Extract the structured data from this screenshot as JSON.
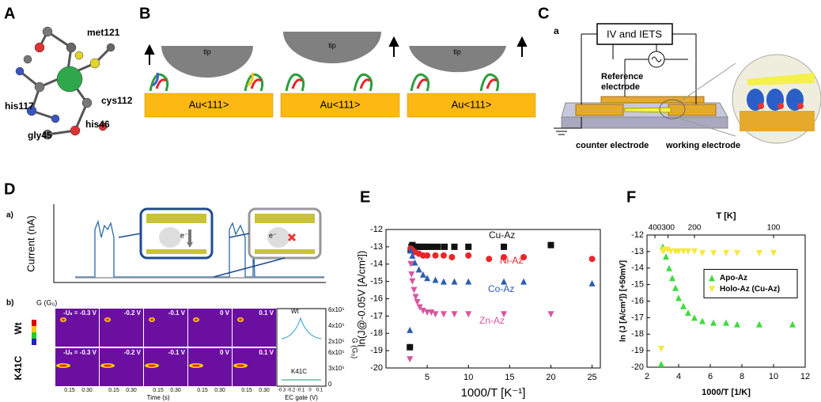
{
  "panels": {
    "A": {
      "letter": "A",
      "labels": [
        "met121",
        "cys112",
        "his117",
        "his46",
        "gly45"
      ]
    },
    "B": {
      "letter": "B",
      "tip": [
        "tip",
        "tip",
        "tip"
      ],
      "substrate": [
        "Au<111>",
        "Au<111>",
        "Au<111>"
      ]
    },
    "C": {
      "letter": "C",
      "sub": "a",
      "box": "IV and IETS",
      "reference": [
        "Reference",
        "electrode"
      ],
      "counter": "counter electrode",
      "working": "working electrode"
    },
    "D": {
      "letter": "D",
      "a": "a)",
      "current": "Current (nA)",
      "b": "b)",
      "g_label": "G (G₀)",
      "rows": [
        "Wt",
        "K41C"
      ],
      "voltages": [
        "-Uₛ = -0.3 V",
        "-0.2 V",
        "-0.1 V",
        "0 V",
        "0.1 V"
      ],
      "time": "Time (s)",
      "time_ticks": [
        "0.15",
        "0.30"
      ],
      "gate": "EC gate (V)",
      "gate_ticks": [
        "-0.3",
        "-0.2",
        "-0.1",
        "0",
        "0.1"
      ],
      "right_axis": "G (G₀)",
      "right_ticks_top": [
        "6x10⁵",
        "4x10⁵",
        "2x10⁵"
      ],
      "right_ticks_bottom": [
        "6x10⁵",
        "3x10⁵",
        "0"
      ],
      "legend": [
        "Wt",
        "K41C"
      ]
    },
    "E": {
      "letter": "E"
    },
    "F": {
      "letter": "F"
    }
  },
  "chart_data": [
    {
      "type": "scatter",
      "xlabel": "1000/T [K⁻¹]",
      "ylabel": "ln(J@-0.05V [A/cm²])",
      "xlim": [
        0,
        26
      ],
      "ylim": [
        -20,
        -12
      ],
      "xticks": [
        5,
        10,
        15,
        20,
        25
      ],
      "yticks": [
        -20,
        -19,
        -18,
        -17,
        -16,
        -15,
        -14,
        -13,
        -12
      ],
      "series": [
        {
          "name": "Cu-Az",
          "color": "#111111",
          "marker": "square",
          "x": [
            2.9,
            3,
            3.1,
            3.2,
            3.4,
            3.6,
            3.8,
            4.2,
            4.6,
            5,
            5.6,
            6.3,
            7.1,
            8.3,
            10,
            14.3,
            20
          ],
          "values": [
            -18.8,
            -13.2,
            -13,
            -12.9,
            -13,
            -13,
            -13,
            -13,
            -13,
            -13,
            -13,
            -13,
            -13,
            -13,
            -13,
            -13,
            -12.9
          ]
        },
        {
          "name": "Ni-Az",
          "color": "#e8262a",
          "marker": "circle",
          "x": [
            3,
            3.2,
            3.5,
            4,
            4.5,
            5,
            6,
            7,
            8,
            10,
            12.5,
            14.3,
            16.7,
            25
          ],
          "values": [
            -13.1,
            -13.2,
            -13.3,
            -13.4,
            -13.5,
            -13.5,
            -13.5,
            -13.5,
            -13.6,
            -13.5,
            -13.7,
            -13.6,
            -13.6,
            -13.7
          ]
        },
        {
          "name": "Co-Az",
          "color": "#2a5db0",
          "marker": "triangle",
          "x": [
            2.9,
            3,
            3.2,
            3.5,
            4,
            4.5,
            5,
            6,
            7,
            8.3,
            10,
            14.3,
            16.7,
            25
          ],
          "values": [
            -17.8,
            -13.2,
            -13.5,
            -13.9,
            -14.3,
            -14.6,
            -14.8,
            -14.9,
            -15,
            -15,
            -15,
            -15,
            -15,
            -15.1
          ]
        },
        {
          "name": "Zn-Az",
          "color": "#d9559f",
          "marker": "triangle-down",
          "x": [
            2.9,
            3,
            3.1,
            3.2,
            3.4,
            3.6,
            3.8,
            4.1,
            4.5,
            5,
            5.5,
            6,
            7,
            8.3,
            10,
            14.3,
            20
          ],
          "values": [
            -19.5,
            -14,
            -14.6,
            -15,
            -15.5,
            -15.9,
            -16.2,
            -16.5,
            -16.7,
            -16.8,
            -16.8,
            -16.9,
            -16.9,
            -16.9,
            -16.9,
            -16.9,
            -16.9
          ]
        }
      ]
    },
    {
      "type": "scatter",
      "xlabel": "1000/T [1/K]",
      "ylabel": "ln (J [A/cm²]) [+50mV]",
      "x2label": "T [K]",
      "xlim": [
        2,
        12
      ],
      "ylim": [
        -20,
        -12
      ],
      "xticks": [
        2,
        4,
        6,
        8,
        10,
        12
      ],
      "yticks": [
        -20,
        -19,
        -18,
        -17,
        -16,
        -15,
        -14,
        -13,
        -12
      ],
      "x2ticks": [
        400,
        300,
        200,
        100
      ],
      "legend": "center right",
      "series": [
        {
          "name": "Apo-Az",
          "color": "#3ddc3d",
          "marker": "triangle",
          "x": [
            2.9,
            3,
            3.2,
            3.4,
            3.6,
            3.8,
            4,
            4.3,
            4.6,
            5,
            5.5,
            6.2,
            7,
            7.7,
            9.1,
            11.2
          ],
          "values": [
            -19.8,
            -12.7,
            -13.3,
            -14,
            -14.6,
            -15.2,
            -15.8,
            -16.3,
            -16.7,
            -17,
            -17.2,
            -17.3,
            -17.3,
            -17.4,
            -17.4,
            -17.4
          ]
        },
        {
          "name": "Holo-Az (Cu-Az)",
          "color": "#f5e93a",
          "marker": "triangle-down",
          "x": [
            2.9,
            3,
            3.1,
            3.3,
            3.5,
            3.8,
            4,
            4.3,
            4.6,
            5,
            5.5,
            6.2,
            7,
            7.7,
            9.1,
            10
          ],
          "values": [
            -18.9,
            -13,
            -12.9,
            -12.9,
            -13,
            -13,
            -13,
            -13,
            -13,
            -13,
            -13.1,
            -13.1,
            -13.1,
            -13.1,
            -13.1,
            -13.1
          ]
        }
      ]
    }
  ]
}
